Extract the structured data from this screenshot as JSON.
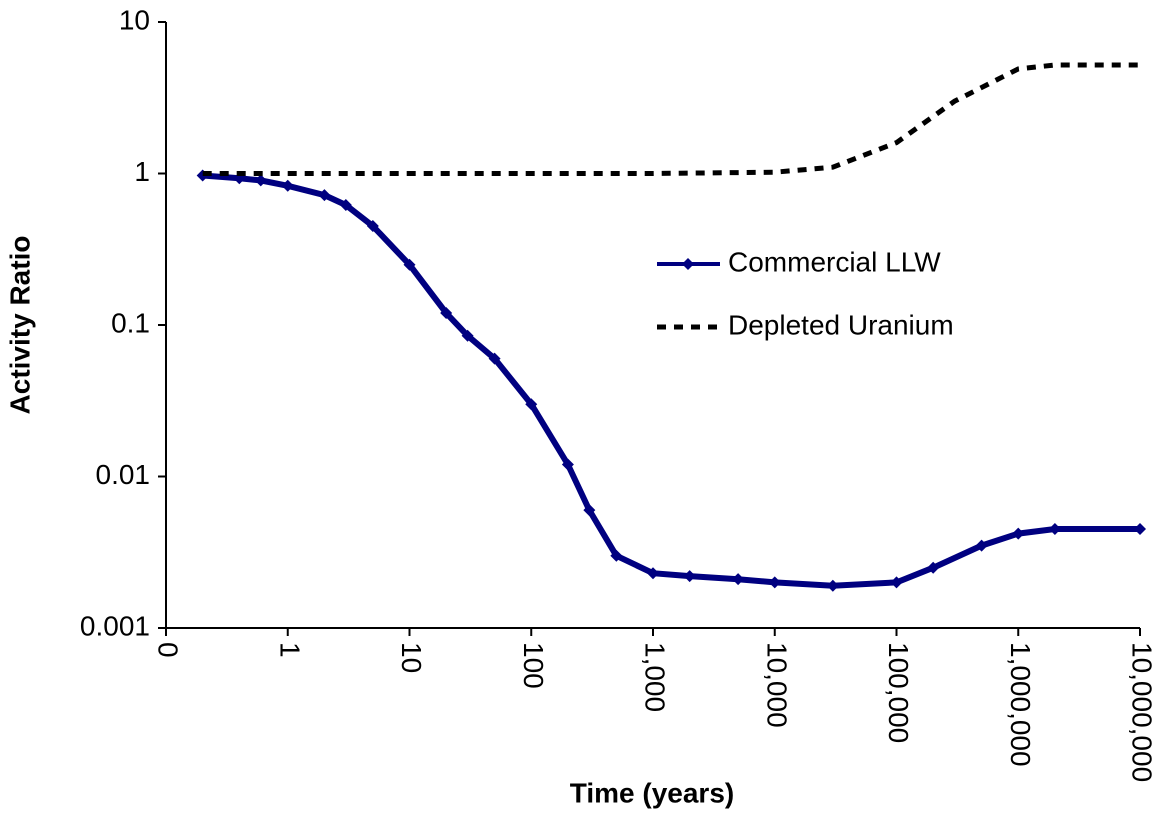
{
  "chart_data": {
    "type": "line",
    "xlabel": "Time (years)",
    "ylabel": "Activity Ratio",
    "xscale": "log",
    "yscale": "log",
    "xlim": [
      0.1,
      10000000
    ],
    "ylim": [
      0.001,
      10
    ],
    "xticks": [
      {
        "value": 0.1,
        "label": "0"
      },
      1,
      10,
      100,
      {
        "value": 1000,
        "label": "1,000"
      },
      {
        "value": 10000,
        "label": "10,000"
      },
      {
        "value": 100000,
        "label": "100,000"
      },
      {
        "value": 1000000,
        "label": "1,000,000"
      },
      {
        "value": 10000000,
        "label": "10,000,000"
      }
    ],
    "yticks": [
      0.001,
      0.01,
      0.1,
      1,
      10
    ],
    "grid": false,
    "legend": "right",
    "series": [
      {
        "name": "Commercial LLW",
        "color": "#000080",
        "style": "solid-marker",
        "x": [
          0.2,
          0.4,
          0.6,
          1,
          2,
          3,
          5,
          10,
          20,
          30,
          50,
          100,
          200,
          300,
          500,
          1000,
          2000,
          5000,
          10000,
          30000,
          100000,
          200000,
          500000,
          1000000,
          2000000,
          10000000
        ],
        "values": [
          0.97,
          0.93,
          0.9,
          0.83,
          0.72,
          0.62,
          0.45,
          0.25,
          0.12,
          0.085,
          0.06,
          0.03,
          0.012,
          0.006,
          0.003,
          0.0023,
          0.0022,
          0.0021,
          0.002,
          0.0019,
          0.002,
          0.0025,
          0.0035,
          0.0042,
          0.0045,
          0.0045
        ]
      },
      {
        "name": "Depleted Uranium",
        "color": "#000000",
        "style": "dashed",
        "x": [
          0.2,
          1,
          10,
          100,
          1000,
          10000,
          30000,
          100000,
          300000,
          1000000,
          2000000,
          10000000
        ],
        "values": [
          1,
          1,
          1,
          1,
          1,
          1.02,
          1.1,
          1.6,
          3,
          4.9,
          5.2,
          5.2
        ]
      }
    ]
  }
}
